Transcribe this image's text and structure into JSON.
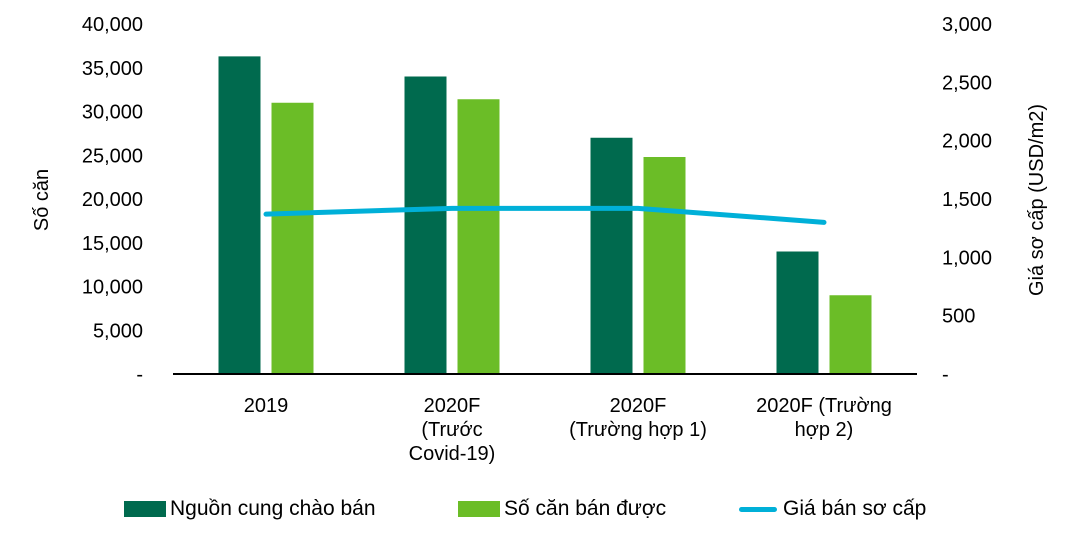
{
  "chart_data": {
    "type": "bar",
    "title": "",
    "categories": [
      [
        "2019"
      ],
      [
        "2020F",
        "(Trước",
        "Covid-19)"
      ],
      [
        "2020F",
        "(Trường hợp 1)"
      ],
      [
        "2020F (Trường",
        "hợp 2)"
      ]
    ],
    "category_labels": [
      "2019",
      "2020F (Trước Covid-19)",
      "2020F (Trường hợp 1)",
      "2020F (Trường hợp 2)"
    ],
    "series": [
      {
        "name": "Nguồn cung chào bán",
        "type": "bar",
        "axis": "left",
        "color": "#006a4e",
        "values": [
          36300,
          34000,
          27000,
          14000
        ]
      },
      {
        "name": "Số căn bán được",
        "type": "bar",
        "axis": "left",
        "color": "#6bbd27",
        "values": [
          31000,
          31400,
          24800,
          9000
        ]
      },
      {
        "name": "Giá bán sơ cấp",
        "type": "line",
        "axis": "right",
        "color": "#00b0d8",
        "values": [
          1370,
          1420,
          1420,
          1300
        ]
      }
    ],
    "ylabel": "Số căn",
    "ylabel_right": "Giá sơ cấp (USD/m2)",
    "ylim": [
      0,
      40000
    ],
    "ylim_right": [
      0,
      3000
    ],
    "yticks": [
      {
        "value": 0,
        "label": "-"
      },
      {
        "value": 5000,
        "label": "5,000"
      },
      {
        "value": 10000,
        "label": "10,000"
      },
      {
        "value": 15000,
        "label": "15,000"
      },
      {
        "value": 20000,
        "label": "20,000"
      },
      {
        "value": 25000,
        "label": "25,000"
      },
      {
        "value": 30000,
        "label": "30,000"
      },
      {
        "value": 35000,
        "label": "35,000"
      },
      {
        "value": 40000,
        "label": "40,000"
      }
    ],
    "yticks_right": [
      {
        "value": 0,
        "label": "-"
      },
      {
        "value": 500,
        "label": "500"
      },
      {
        "value": 1000,
        "label": "1,000"
      },
      {
        "value": 1500,
        "label": "1,500"
      },
      {
        "value": 2000,
        "label": "2,000"
      },
      {
        "value": 2500,
        "label": "2,500"
      },
      {
        "value": 3000,
        "label": "3,000"
      }
    ],
    "grid": false,
    "legend_position": "bottom"
  },
  "legend": [
    {
      "label": "Nguồn cung chào bán",
      "color": "#006a4e",
      "kind": "box"
    },
    {
      "label": "Số căn bán được",
      "color": "#6bbd27",
      "kind": "box"
    },
    {
      "label": "Giá bán sơ cấp",
      "color": "#00b0d8",
      "kind": "line"
    }
  ]
}
